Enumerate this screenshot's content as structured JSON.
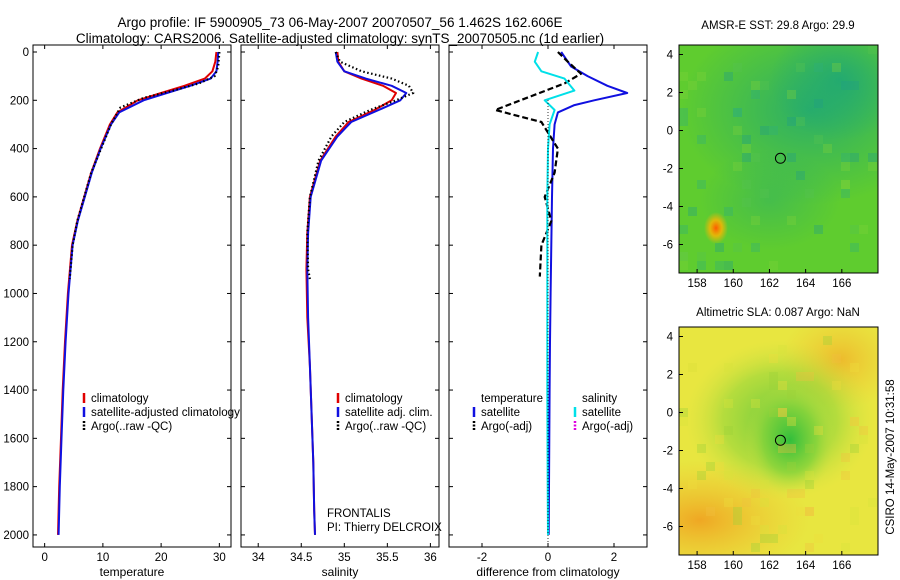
{
  "header": {
    "line1": "Argo profile: IF 5900905_73 06-May-2007 20070507_56 1.462S 162.606E",
    "line2": "Climatology: CARS2006. Satellite-adjusted climatology: synTS_20070505.nc (1d earlier)"
  },
  "side_stamp": "CSIRO 14-May-2007 10:31:58",
  "colors": {
    "climatology": "#e00000",
    "satellite": "#1010e0",
    "argo": "#000000",
    "salinity_satellite": "#00e0e8",
    "salinity_argo": "#e000e0"
  },
  "chart_data": [
    {
      "type": "line",
      "id": "temperature",
      "xlabel": "temperature",
      "ylabel": "",
      "xlim": [
        -2,
        32
      ],
      "ylim": [
        2050,
        0
      ],
      "xticks": [
        0,
        10,
        20,
        30
      ],
      "yticks": [
        0,
        200,
        400,
        600,
        800,
        1000,
        1200,
        1400,
        1600,
        1800,
        2000
      ],
      "series": [
        {
          "name": "climatology",
          "color": "#e00000",
          "style": "solid",
          "x": [
            29.5,
            29.3,
            28.8,
            27.5,
            24,
            20,
            16,
            12.5,
            11.2,
            9.5,
            8,
            6.8,
            5.6,
            4.7,
            4,
            3.5,
            3.1,
            2.8,
            2.5,
            2.3
          ],
          "y": [
            0,
            40,
            80,
            110,
            140,
            170,
            200,
            250,
            300,
            400,
            500,
            600,
            700,
            800,
            1000,
            1200,
            1400,
            1600,
            1800,
            2000
          ]
        },
        {
          "name": "satellite-adjusted climatology",
          "color": "#1010e0",
          "style": "solid",
          "x": [
            29.8,
            29.7,
            29.5,
            28.5,
            25,
            21,
            17,
            12.8,
            11.4,
            9.6,
            8.1,
            6.9,
            5.7,
            4.8,
            4.1,
            3.6,
            3.2,
            2.9,
            2.6,
            2.4
          ],
          "y": [
            0,
            40,
            80,
            110,
            140,
            170,
            200,
            250,
            300,
            400,
            500,
            600,
            700,
            800,
            1000,
            1200,
            1400,
            1600,
            1800,
            2000
          ]
        },
        {
          "name": "Argo(..raw -QC)",
          "color": "#000000",
          "style": "dotted",
          "x": [
            30,
            29.9,
            29.8,
            29.2,
            26.5,
            22,
            17,
            13,
            11.4,
            9.7,
            8,
            6.8,
            5.6,
            4.8,
            4.3
          ],
          "y": [
            0,
            30,
            60,
            100,
            130,
            160,
            190,
            230,
            300,
            400,
            500,
            600,
            700,
            800,
            940
          ]
        }
      ],
      "legend": [
        "climatology",
        "satellite-adjusted climatology",
        "Argo(..raw -QC)"
      ],
      "legend_position": "lower-center"
    },
    {
      "type": "line",
      "id": "salinity",
      "xlabel": "salinity",
      "ylabel": "",
      "xlim": [
        33.8,
        36.1
      ],
      "ylim": [
        2050,
        0
      ],
      "xticks": [
        34,
        34.5,
        35,
        35.5,
        36
      ],
      "series": [
        {
          "name": "climatology",
          "color": "#e00000",
          "style": "solid",
          "x": [
            34.92,
            34.93,
            35.0,
            35.2,
            35.45,
            35.6,
            35.55,
            35.35,
            35.05,
            34.9,
            34.72,
            34.6,
            34.57,
            34.56,
            34.57,
            34.6,
            34.62,
            34.64,
            34.65,
            34.66
          ],
          "y": [
            0,
            40,
            80,
            110,
            140,
            170,
            200,
            240,
            290,
            350,
            450,
            600,
            750,
            900,
            1100,
            1300,
            1500,
            1700,
            1900,
            2000
          ]
        },
        {
          "name": "satellite adj. clim.",
          "color": "#1010e0",
          "style": "solid",
          "x": [
            34.9,
            34.92,
            35.0,
            35.25,
            35.55,
            35.72,
            35.65,
            35.4,
            35.08,
            34.92,
            34.73,
            34.61,
            34.58,
            34.57,
            34.58,
            34.6,
            34.62,
            34.64,
            34.65,
            34.66
          ],
          "y": [
            0,
            40,
            80,
            110,
            140,
            170,
            200,
            240,
            290,
            350,
            450,
            600,
            750,
            900,
            1100,
            1300,
            1500,
            1700,
            1900,
            2000
          ]
        },
        {
          "name": "Argo(..raw -QC)",
          "color": "#000000",
          "style": "dotted",
          "x": [
            34.9,
            34.95,
            35.2,
            35.55,
            35.75,
            35.8,
            35.6,
            35.3,
            35.0,
            34.85,
            34.7,
            34.6,
            34.57,
            34.58,
            34.6
          ],
          "y": [
            0,
            40,
            80,
            110,
            140,
            170,
            200,
            240,
            290,
            350,
            450,
            600,
            750,
            900,
            940
          ]
        }
      ],
      "legend": [
        "climatology",
        "satellite adj. clim.",
        "Argo(..raw -QC)"
      ],
      "legend_position": "lower-center",
      "annotation": [
        "FRONTALIS",
        "PI: Thierry DELCROIX"
      ]
    },
    {
      "type": "line",
      "id": "difference",
      "xlabel": "difference from climatology",
      "ylabel": "",
      "xlim": [
        -3,
        3
      ],
      "ylim": [
        2050,
        0
      ],
      "xticks": [
        -2,
        0,
        2
      ],
      "series": [
        {
          "name": "temperature satellite",
          "color": "#1010e0",
          "style": "solid",
          "x": [
            0.4,
            0.7,
            1.2,
            1.8,
            2.4,
            1.4,
            0.8,
            0.3,
            0.2,
            0.15,
            0.12,
            0.1,
            0.08,
            0.06,
            0.05,
            0.04,
            0.03,
            0.02
          ],
          "y": [
            0,
            60,
            100,
            140,
            170,
            200,
            220,
            250,
            300,
            400,
            600,
            800,
            1000,
            1200,
            1400,
            1600,
            1800,
            2000
          ]
        },
        {
          "name": "temperature Argo(-adj)",
          "color": "#000000",
          "style": "dashed",
          "x": [
            0.3,
            0.6,
            1.0,
            0.5,
            -1.6,
            -0.2,
            0.3,
            0.2,
            -0.1,
            0.1,
            -0.2,
            -0.25
          ],
          "y": [
            0,
            40,
            90,
            130,
            240,
            290,
            400,
            500,
            600,
            700,
            800,
            930
          ]
        },
        {
          "name": "salinity satellite",
          "color": "#00e0e8",
          "style": "solid",
          "x": [
            -0.3,
            -0.4,
            -0.2,
            0.5,
            0.8,
            -0.1,
            0.2,
            0.05,
            0.0,
            -0.02,
            -0.02,
            -0.02,
            -0.02,
            -0.01,
            0.0
          ],
          "y": [
            0,
            40,
            80,
            110,
            160,
            200,
            240,
            300,
            400,
            600,
            800,
            1000,
            1400,
            1800,
            2000
          ]
        },
        {
          "name": "salinity Argo(-adj)",
          "color": "#e000e0",
          "style": "dashed",
          "x": [],
          "y": []
        }
      ],
      "legend": [
        "temperature",
        "satellite",
        "Argo(-adj)",
        "salinity",
        "satellite",
        "Argo(-adj)"
      ],
      "legend_position": "lower-center"
    },
    {
      "type": "heatmap",
      "id": "sst_map",
      "title": "AMSR-E SST: 29.8 Argo: 29.9",
      "xlim": [
        157,
        168
      ],
      "ylim": [
        -7.5,
        4.5
      ],
      "xticks": [
        158,
        160,
        162,
        164,
        166
      ],
      "yticks": [
        -6,
        -4,
        -2,
        0,
        2,
        4
      ],
      "marker": {
        "lon": 162.606,
        "lat": -1.462
      }
    },
    {
      "type": "heatmap",
      "id": "sla_map",
      "title": "Altimetric SLA: 0.087 Argo: NaN",
      "xlim": [
        157,
        168
      ],
      "ylim": [
        -7.5,
        4.5
      ],
      "xticks": [
        158,
        160,
        162,
        164,
        166
      ],
      "yticks": [
        -6,
        -4,
        -2,
        0,
        2,
        4
      ],
      "marker": {
        "lon": 162.606,
        "lat": -1.462
      }
    }
  ]
}
